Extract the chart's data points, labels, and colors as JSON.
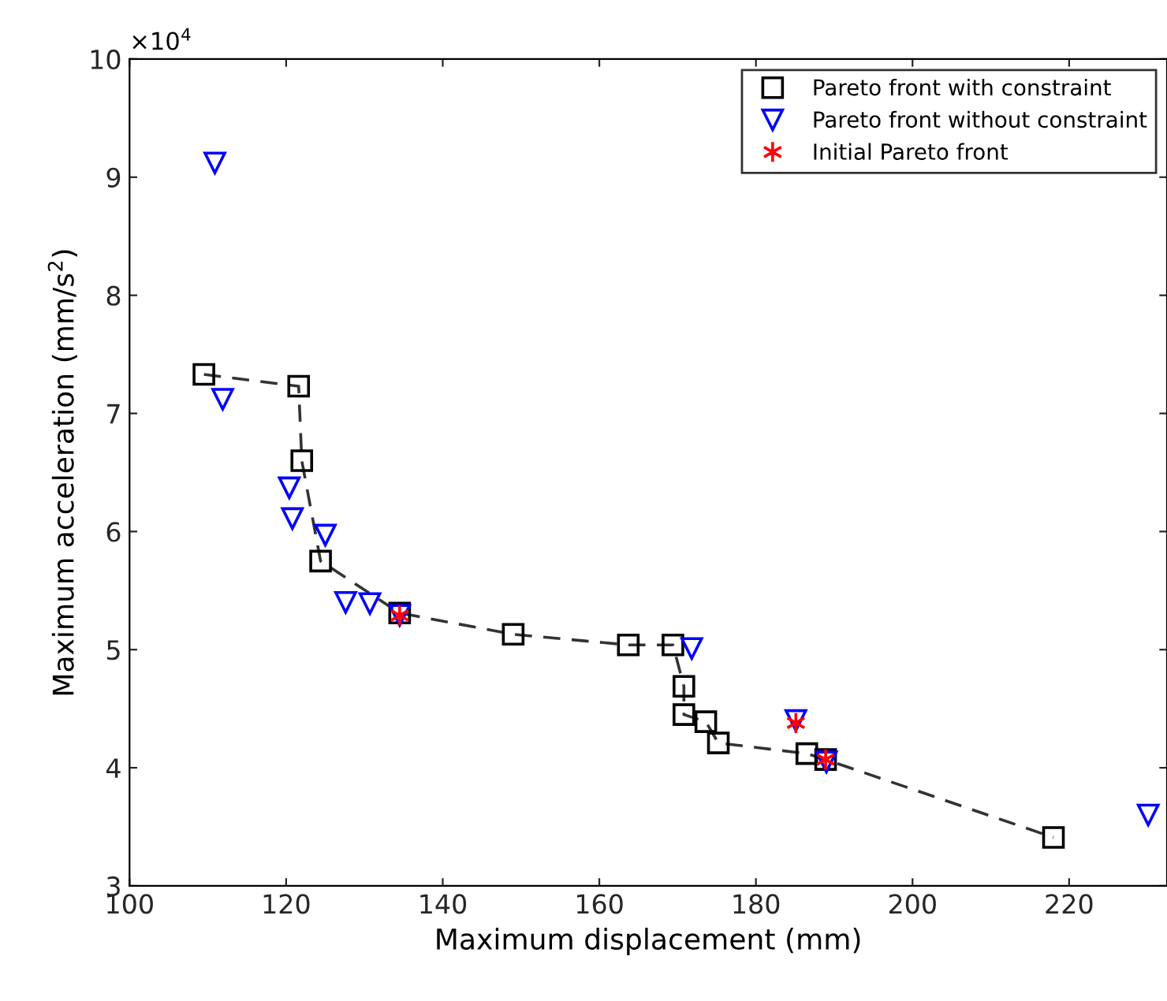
{
  "chart_data": {
    "type": "scatter",
    "xlabel": "Maximum displacement (mm)",
    "ylabel": "Maximum acceleration (mm/s$^{2}$)",
    "annotations": [
      "×10$^{4}$"
    ],
    "xlim": [
      100,
      232.5
    ],
    "xticks": [
      100,
      120,
      140,
      160,
      180,
      200,
      220
    ],
    "ylim": [
      3,
      10
    ],
    "yticks": [
      3,
      4,
      5,
      6,
      7,
      8,
      9,
      10
    ],
    "grid": false,
    "legend": "top right",
    "series": [
      {
        "name": "Pareto front with constraint",
        "type": "line",
        "line_style": "dashed",
        "marker": "square",
        "color": "#000000",
        "x": [
          109.5,
          121.6,
          122.0,
          124.4,
          134.5,
          149.0,
          163.7,
          169.4,
          170.8,
          170.8,
          173.6,
          175.2,
          186.5,
          188.9,
          218.0
        ],
        "values": [
          7.33,
          7.23,
          6.6,
          5.75,
          5.31,
          5.13,
          5.04,
          5.04,
          4.69,
          4.45,
          4.39,
          4.21,
          4.12,
          4.07,
          3.41
        ]
      },
      {
        "name": "Pareto front without constraint",
        "marker": "triangle",
        "color": "#0000ff",
        "x": [
          110.9,
          111.9,
          120.4,
          120.8,
          125.0,
          127.6,
          130.7,
          134.5,
          171.8,
          185.1,
          189.0,
          230.1
        ],
        "values": [
          9.12,
          7.12,
          6.37,
          6.11,
          5.97,
          5.4,
          5.39,
          5.29,
          5.01,
          4.4,
          4.05,
          3.6
        ]
      },
      {
        "name": "Initial Pareto front",
        "marker": "cross",
        "color": "#ff0000",
        "x": [
          134.5,
          185.1,
          188.9
        ],
        "values": [
          5.29,
          4.38,
          4.07
        ]
      }
    ]
  }
}
